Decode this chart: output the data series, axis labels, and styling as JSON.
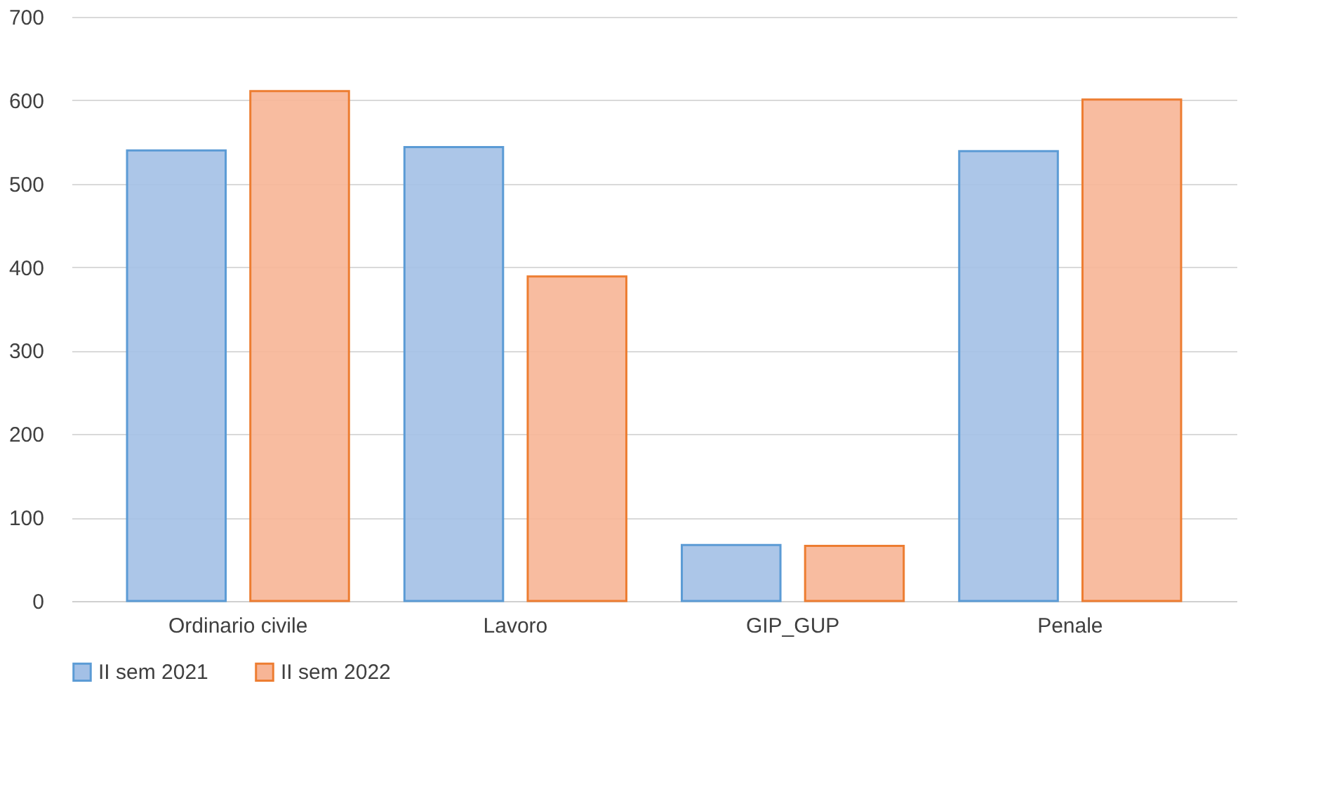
{
  "chart_data": {
    "type": "bar",
    "categories": [
      "Ordinario civile",
      "Lavoro",
      "GIP_GUP",
      "Penale"
    ],
    "series": [
      {
        "name": "II sem 2021",
        "color": "#a3c0e6",
        "values": [
          540,
          544,
          67,
          539
        ]
      },
      {
        "name": "II sem 2022",
        "color": "#f7b596",
        "values": [
          611,
          389,
          66,
          601
        ]
      }
    ],
    "ylim": [
      0,
      700
    ],
    "yticks": [
      0,
      100,
      200,
      300,
      400,
      500,
      600,
      700
    ],
    "grid": "y",
    "legend": "bottom"
  }
}
